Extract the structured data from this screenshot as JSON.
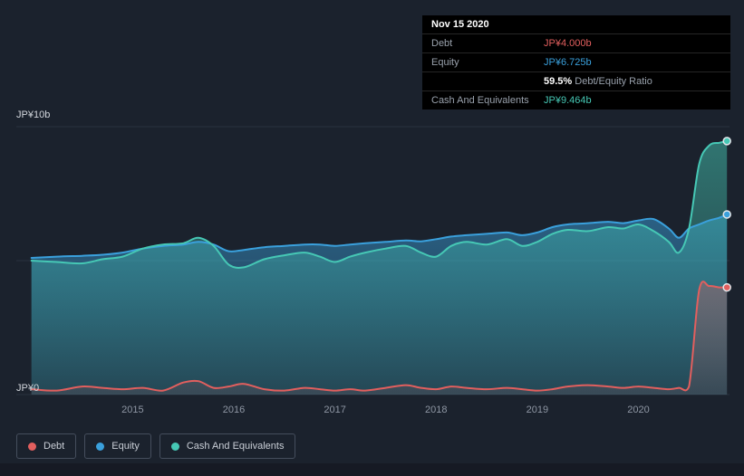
{
  "page": {
    "background": "#1b222d"
  },
  "tooltip": {
    "date": "Nov 15 2020",
    "rows": {
      "debt_label": "Debt",
      "debt_value": "JP¥4.000b",
      "equity_label": "Equity",
      "equity_value": "JP¥6.725b",
      "ratio_value": "59.5%",
      "ratio_label": "Debt/Equity Ratio",
      "cash_label": "Cash And Equivalents",
      "cash_value": "JP¥9.464b"
    }
  },
  "axis": {
    "y_top_label": "JP¥10b",
    "y_bottom_label": "JP¥0"
  },
  "chart_data": {
    "type": "area",
    "unit": "JP¥ billions",
    "xlim": [
      2013.85,
      2020.9
    ],
    "ylim": [
      0,
      10
    ],
    "gridlines_y": [
      0,
      5,
      10
    ],
    "grid_color": "#2a3340",
    "tick_color": "#8e96a3",
    "x_ticks": [
      2015,
      2016,
      2017,
      2018,
      2019,
      2020
    ],
    "draw_order": [
      1,
      2,
      0
    ],
    "x": [
      2014.0,
      2014.25,
      2014.5,
      2014.7,
      2014.9,
      2015.1,
      2015.3,
      2015.5,
      2015.65,
      2015.8,
      2015.95,
      2016.1,
      2016.3,
      2016.5,
      2016.7,
      2016.85,
      2017.0,
      2017.15,
      2017.3,
      2017.5,
      2017.7,
      2017.85,
      2018.0,
      2018.15,
      2018.3,
      2018.5,
      2018.7,
      2018.85,
      2019.0,
      2019.15,
      2019.3,
      2019.5,
      2019.7,
      2019.85,
      2020.0,
      2020.15,
      2020.3,
      2020.4,
      2020.5,
      2020.6,
      2020.7,
      2020.8,
      2020.875
    ],
    "series": [
      {
        "name": "Debt",
        "color": "#e25f5e",
        "fill_opacity_top": 0.35,
        "fill_opacity_bottom": 0.1,
        "end_value": 4.0,
        "values": [
          0.2,
          0.15,
          0.3,
          0.25,
          0.2,
          0.25,
          0.15,
          0.45,
          0.5,
          0.25,
          0.3,
          0.4,
          0.2,
          0.15,
          0.25,
          0.2,
          0.15,
          0.2,
          0.15,
          0.25,
          0.35,
          0.25,
          0.2,
          0.3,
          0.25,
          0.2,
          0.25,
          0.2,
          0.15,
          0.2,
          0.3,
          0.35,
          0.3,
          0.25,
          0.3,
          0.25,
          0.2,
          0.25,
          0.3,
          3.9,
          4.05,
          4.0,
          4.0
        ]
      },
      {
        "name": "Equity",
        "color": "#3aa0dc",
        "fill_opacity_top": 0.5,
        "fill_opacity_bottom": 0.15,
        "end_value": 6.725,
        "values": [
          5.1,
          5.15,
          5.18,
          5.22,
          5.3,
          5.45,
          5.55,
          5.6,
          5.7,
          5.6,
          5.35,
          5.4,
          5.5,
          5.55,
          5.6,
          5.6,
          5.55,
          5.6,
          5.65,
          5.7,
          5.75,
          5.72,
          5.8,
          5.9,
          5.95,
          6.0,
          6.05,
          5.95,
          6.05,
          6.25,
          6.35,
          6.4,
          6.45,
          6.4,
          6.5,
          6.55,
          6.2,
          5.85,
          6.2,
          6.35,
          6.5,
          6.6,
          6.725
        ]
      },
      {
        "name": "Cash And Equivalents",
        "color": "#46c8b5",
        "fill_opacity_top": 0.5,
        "fill_opacity_bottom": 0.12,
        "end_value": 9.464,
        "values": [
          5.0,
          4.95,
          4.9,
          5.05,
          5.15,
          5.45,
          5.6,
          5.65,
          5.85,
          5.55,
          4.85,
          4.75,
          5.05,
          5.2,
          5.3,
          5.15,
          4.95,
          5.15,
          5.3,
          5.45,
          5.55,
          5.3,
          5.15,
          5.55,
          5.7,
          5.6,
          5.8,
          5.55,
          5.7,
          6.0,
          6.15,
          6.1,
          6.25,
          6.2,
          6.35,
          6.1,
          5.7,
          5.3,
          6.2,
          8.6,
          9.3,
          9.4,
          9.464
        ]
      }
    ]
  }
}
